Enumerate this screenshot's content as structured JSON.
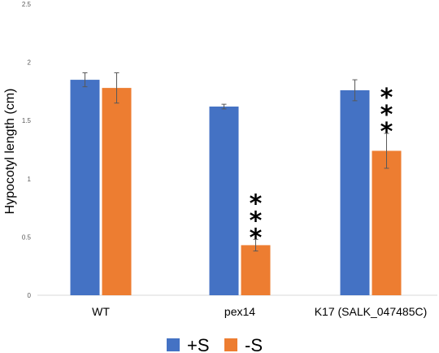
{
  "chart_data": {
    "type": "bar",
    "title": "",
    "xlabel": "",
    "ylabel": "Hypocotyl length (cm)",
    "ylim": [
      0,
      2.5
    ],
    "yticks": [
      "0",
      "0.5",
      "1",
      "1.5",
      "2",
      "2.5"
    ],
    "grid": false,
    "legend_position": "bottom",
    "categories": [
      "WT",
      "pex14",
      "K17 (SALK_047485C)"
    ],
    "series": [
      {
        "name": "+S",
        "color": "#4472C4",
        "values": [
          1.85,
          1.62,
          1.76
        ],
        "errors": [
          0.06,
          0.02,
          0.09
        ],
        "significance": [
          "",
          "",
          ""
        ]
      },
      {
        "name": "-S",
        "color": "#ED7D31",
        "values": [
          1.78,
          0.43,
          1.24
        ],
        "errors": [
          0.13,
          0.05,
          0.15
        ],
        "significance": [
          "",
          "***",
          "***"
        ]
      }
    ]
  }
}
